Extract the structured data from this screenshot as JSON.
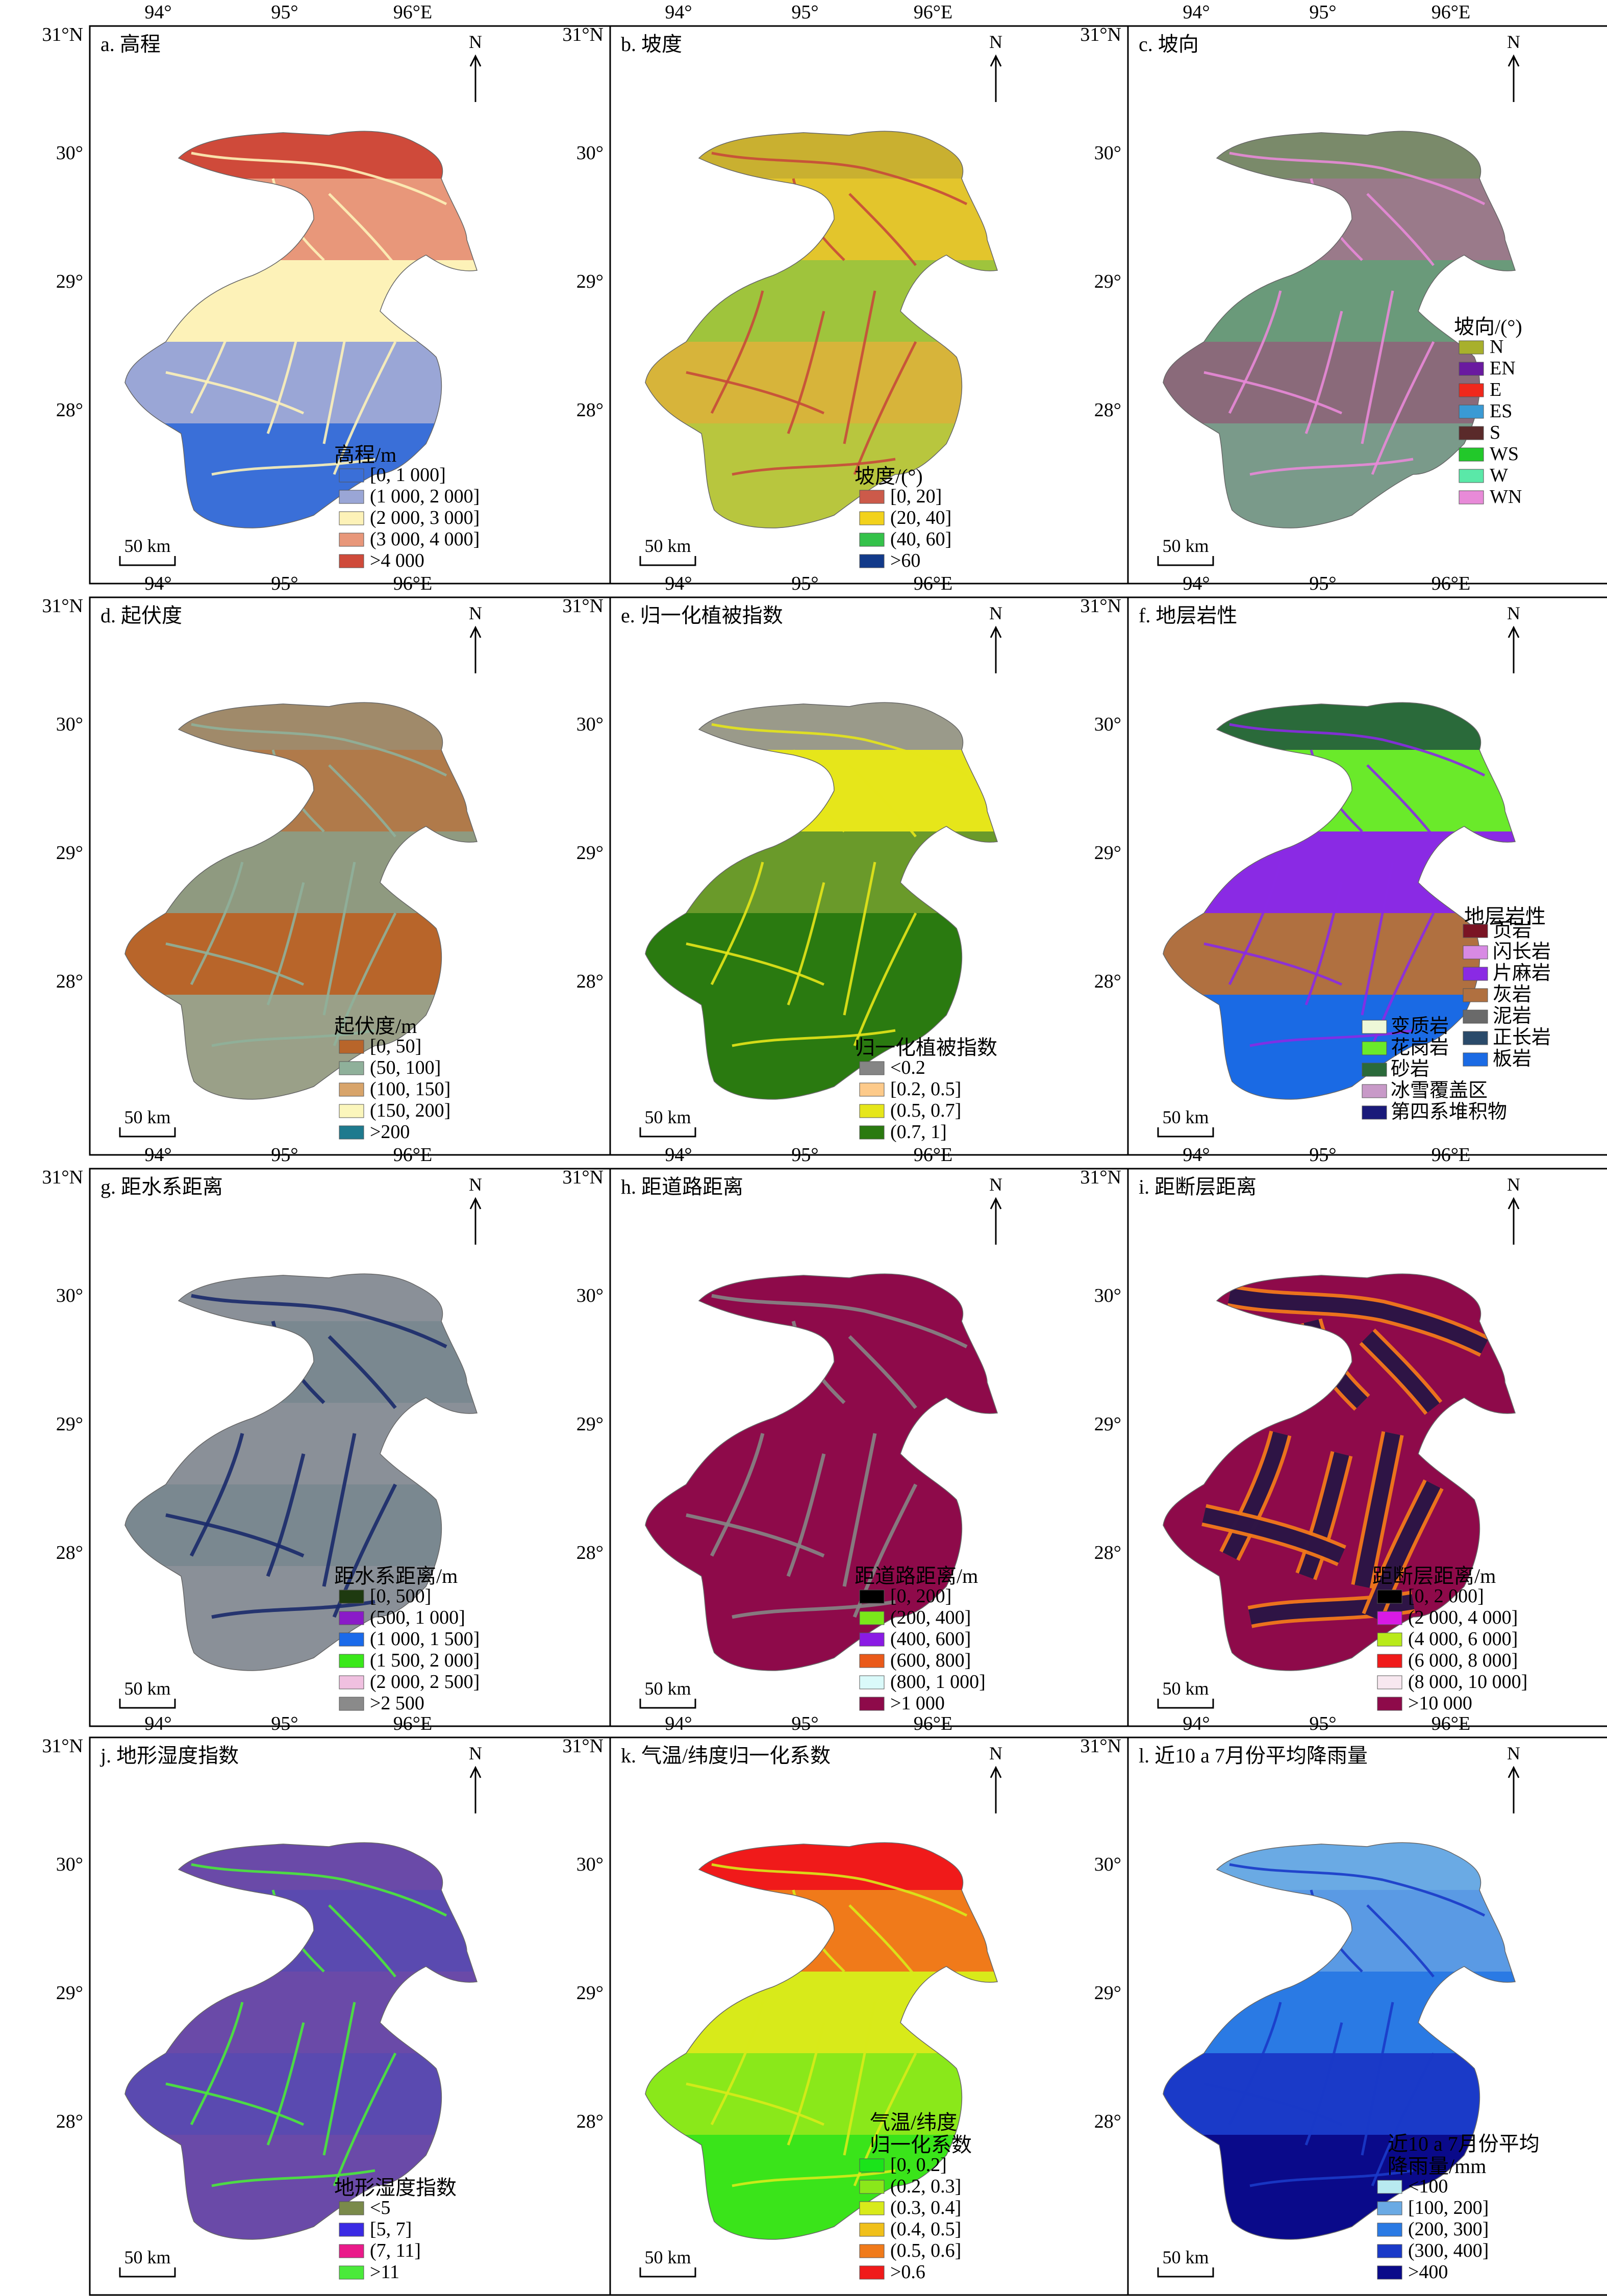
{
  "figure": {
    "panels": [
      {
        "id": "a",
        "title": "a. 高程",
        "lon_labels": [
          "94°",
          "95°",
          "96°E"
        ],
        "lat_labels": [
          "31°N",
          "30°",
          "29°",
          "28°"
        ],
        "north": "N",
        "scale": "50 km",
        "legend_title_lines": [
          "高程/m"
        ],
        "legend": [
          {
            "label": "[0, 1 000]",
            "color": "#3a6fd8"
          },
          {
            "label": "(1 000, 2 000]",
            "color": "#9aa6d6"
          },
          {
            "label": "(2 000, 3 000]",
            "color": "#fdf2b8"
          },
          {
            "label": "(3 000, 4 000]",
            "color": "#e8977a"
          },
          {
            "label": ">4 000",
            "color": "#cf4a3a"
          }
        ],
        "map_colors": [
          "#cf4a3a",
          "#e8977a",
          "#fdf2b8",
          "#9aa6d6",
          "#3a6fd8"
        ]
      },
      {
        "id": "b",
        "title": "b. 坡度",
        "lon_labels": [
          "94°",
          "95°",
          "96°E"
        ],
        "lat_labels": [
          "31°N",
          "30°",
          "29°",
          "28°"
        ],
        "north": "N",
        "scale": "50 km",
        "legend_title_lines": [
          "坡度/(°)"
        ],
        "legend": [
          {
            "label": "[0, 20]",
            "color": "#cc5a4a"
          },
          {
            "label": "(20, 40]",
            "color": "#f2d21c"
          },
          {
            "label": "(40, 60]",
            "color": "#34c24a"
          },
          {
            "label": ">60",
            "color": "#123a8a"
          }
        ],
        "map_colors": [
          "#c9b030",
          "#e3c52c",
          "#9fc43c",
          "#d7b43a",
          "#b8c63e"
        ]
      },
      {
        "id": "c",
        "title": "c. 坡向",
        "lon_labels": [
          "94°",
          "95°",
          "96°E"
        ],
        "lat_labels": [
          "31°N",
          "30°",
          "29°",
          "28°"
        ],
        "north": "N",
        "scale": "50 km",
        "legend_title_lines": [
          "坡向/(°)"
        ],
        "legend": [
          {
            "label": "N",
            "color": "#a8b02c"
          },
          {
            "label": "EN",
            "color": "#6a1aa0"
          },
          {
            "label": "E",
            "color": "#f0281c"
          },
          {
            "label": "ES",
            "color": "#3a9ad4"
          },
          {
            "label": "S",
            "color": "#5a2a2a"
          },
          {
            "label": "WS",
            "color": "#22c82a"
          },
          {
            "label": "W",
            "color": "#5ae8a8"
          },
          {
            "label": "WN",
            "color": "#e88ad8"
          }
        ],
        "map_colors": [
          "#7a8a6a",
          "#9a7a8a",
          "#6a9a7a",
          "#8a6a7a",
          "#7a9a8a"
        ]
      },
      {
        "id": "d",
        "title": "d. 起伏度",
        "lon_labels": [
          "94°",
          "95°",
          "96°E"
        ],
        "lat_labels": [
          "31°N",
          "30°",
          "29°",
          "28°"
        ],
        "north": "N",
        "scale": "50 km",
        "legend_title_lines": [
          "起伏度/m"
        ],
        "legend": [
          {
            "label": "[0, 50]",
            "color": "#b8652a"
          },
          {
            "label": "(50, 100]",
            "color": "#8fb09a"
          },
          {
            "label": "(100, 150]",
            "color": "#d8a46a"
          },
          {
            "label": "(150, 200]",
            "color": "#fbf6bc"
          },
          {
            "label": ">200",
            "color": "#1e7a8e"
          }
        ],
        "map_colors": [
          "#a08a6a",
          "#b07a4a",
          "#8f9a80",
          "#b8652a",
          "#9aa088"
        ]
      },
      {
        "id": "e",
        "title": "e. 归一化植被指数",
        "lon_labels": [
          "94°",
          "95°",
          "96°E"
        ],
        "lat_labels": [
          "31°N",
          "30°",
          "29°",
          "28°"
        ],
        "north": "N",
        "scale": "50 km",
        "legend_title_lines": [
          "归一化植被指数"
        ],
        "legend": [
          {
            "label": "<0.2",
            "color": "#858585"
          },
          {
            "label": "[0.2, 0.5]",
            "color": "#fdca8a"
          },
          {
            "label": "(0.5, 0.7]",
            "color": "#e6e61a"
          },
          {
            "label": "(0.7, 1]",
            "color": "#2a7a10"
          }
        ],
        "map_colors": [
          "#9a9a8a",
          "#e6e61a",
          "#6a9a2a",
          "#2a7a10",
          "#2a7a10"
        ]
      },
      {
        "id": "f",
        "title": "f. 地层岩性",
        "lon_labels": [
          "94°",
          "95°",
          "96°E"
        ],
        "lat_labels": [
          "31°N",
          "30°",
          "29°",
          "28°"
        ],
        "north": "N",
        "scale": "50 km",
        "legend_title_lines": [
          "地层岩性"
        ],
        "legend": [
          {
            "label": "页岩",
            "color": "#7a1424"
          },
          {
            "label": "闪长岩",
            "color": "#d88ae4"
          },
          {
            "label": "片麻岩",
            "color": "#8a2ae4"
          },
          {
            "label": "灰岩",
            "color": "#b07040"
          },
          {
            "label": "泥岩",
            "color": "#6a6a6a"
          },
          {
            "label": "正长岩",
            "color": "#2a4a6a"
          },
          {
            "label": "板岩",
            "color": "#1a6ae4"
          },
          {
            "label": "变质岩",
            "color": "#eef8d8"
          },
          {
            "label": "花岗岩",
            "color": "#6aea2a"
          },
          {
            "label": "砂岩",
            "color": "#2a6a3a"
          },
          {
            "label": "冰雪覆盖区",
            "color": "#c89ac8"
          },
          {
            "label": "第四系堆积物",
            "color": "#1a1a7a"
          }
        ],
        "map_colors": [
          "#2a6a3a",
          "#6aea2a",
          "#8a2ae4",
          "#b07040",
          "#1a6ae4"
        ]
      },
      {
        "id": "g",
        "title": "g. 距水系距离",
        "lon_labels": [
          "94°",
          "95°",
          "96°E"
        ],
        "lat_labels": [
          "31°N",
          "30°",
          "29°",
          "28°"
        ],
        "north": "N",
        "scale": "50 km",
        "legend_title_lines": [
          "距水系距离/m"
        ],
        "legend": [
          {
            "label": "[0, 500]",
            "color": "#1e3a10"
          },
          {
            "label": "(500, 1 000]",
            "color": "#8a1ac8"
          },
          {
            "label": "(1 000, 1 500]",
            "color": "#1a6aea"
          },
          {
            "label": "(1 500, 2 000]",
            "color": "#3ae81a"
          },
          {
            "label": "(2 000, 2 500]",
            "color": "#f0c0e0"
          },
          {
            "label": ">2 500",
            "color": "#8a8a8a"
          }
        ],
        "map_colors": [
          "#8a9098",
          "#7a8890",
          "#8a9098",
          "#7a8890",
          "#8a9098"
        ]
      },
      {
        "id": "h",
        "title": "h. 距道路距离",
        "lon_labels": [
          "94°",
          "95°",
          "96°E"
        ],
        "lat_labels": [
          "31°N",
          "30°",
          "29°",
          "28°"
        ],
        "north": "N",
        "scale": "50 km",
        "legend_title_lines": [
          "距道路距离/m"
        ],
        "legend": [
          {
            "label": "[0, 200]",
            "color": "#000000"
          },
          {
            "label": "(200, 400]",
            "color": "#7ae81a"
          },
          {
            "label": "(400, 600]",
            "color": "#8a1ae4"
          },
          {
            "label": "(600, 800]",
            "color": "#ea5a1a"
          },
          {
            "label": "(800, 1 000]",
            "color": "#dafafa"
          },
          {
            "label": ">1 000",
            "color": "#8e0a4a"
          }
        ],
        "map_colors": [
          "#8e0a4a",
          "#8e0a4a",
          "#8e0a4a",
          "#8e0a4a",
          "#8e0a4a"
        ]
      },
      {
        "id": "i",
        "title": "i. 距断层距离",
        "lon_labels": [
          "94°",
          "95°",
          "96°E"
        ],
        "lat_labels": [
          "31°N",
          "30°",
          "29°",
          "28°"
        ],
        "north": "N",
        "scale": "50 km",
        "legend_title_lines": [
          "距断层距离/m"
        ],
        "legend": [
          {
            "label": "[0, 2 000]",
            "color": "#000000"
          },
          {
            "label": "(2 000, 4 000]",
            "color": "#d81ae4"
          },
          {
            "label": "(4 000, 6 000]",
            "color": "#b8ea1a"
          },
          {
            "label": "(6 000, 8 000]",
            "color": "#f01a1a"
          },
          {
            "label": "(8 000, 10 000]",
            "color": "#f8e8f0"
          },
          {
            "label": ">10 000",
            "color": "#8e0a4a"
          }
        ],
        "map_colors": [
          "#8e0a4a",
          "#8e0a4a",
          "#8e0a4a",
          "#8e0a4a",
          "#8e0a4a"
        ]
      },
      {
        "id": "j",
        "title": "j. 地形湿度指数",
        "lon_labels": [
          "94°",
          "95°",
          "96°E"
        ],
        "lat_labels": [
          "31°N",
          "30°",
          "29°",
          "28°"
        ],
        "north": "N",
        "scale": "50 km",
        "legend_title_lines": [
          "地形湿度指数"
        ],
        "legend": [
          {
            "label": "<5",
            "color": "#7a8a4a"
          },
          {
            "label": "[5, 7]",
            "color": "#3a2ae4"
          },
          {
            "label": "(7, 11]",
            "color": "#ea1a8a"
          },
          {
            "label": ">11",
            "color": "#4aea3a"
          }
        ],
        "map_colors": [
          "#6a4aa8",
          "#5a4ab0",
          "#6a4aa8",
          "#5a4ab0",
          "#6a4aa8"
        ]
      },
      {
        "id": "k",
        "title": "k. 气温/纬度归一化系数",
        "lon_labels": [
          "94°",
          "95°",
          "96°E"
        ],
        "lat_labels": [
          "31°N",
          "30°",
          "29°",
          "28°"
        ],
        "north": "N",
        "scale": "50 km",
        "legend_title_lines": [
          "气温/纬度",
          "归一化系数"
        ],
        "legend": [
          {
            "label": "[0, 0.2]",
            "color": "#1ae41a"
          },
          {
            "label": "(0.2, 0.3]",
            "color": "#8ae81a"
          },
          {
            "label": "(0.3, 0.4]",
            "color": "#d8ea1a"
          },
          {
            "label": "(0.4, 0.5]",
            "color": "#f0c01a"
          },
          {
            "label": "(0.5, 0.6]",
            "color": "#f07a1a"
          },
          {
            "label": ">0.6",
            "color": "#f01a1a"
          }
        ],
        "map_colors": [
          "#f01a1a",
          "#f07a1a",
          "#d8ea1a",
          "#8ae81a",
          "#3ae41a"
        ]
      },
      {
        "id": "l",
        "title": "l. 近10 a 7月份平均降雨量",
        "lon_labels": [
          "94°",
          "95°",
          "96°E"
        ],
        "lat_labels": [
          "31°N",
          "30°",
          "29°",
          "28°"
        ],
        "north": "N",
        "scale": "50 km",
        "legend_title_lines": [
          "近10 a 7月份平均",
          "降雨量/mm"
        ],
        "legend": [
          {
            "label": "<100",
            "color": "#b8eaf0"
          },
          {
            "label": "[100, 200]",
            "color": "#6aaae4"
          },
          {
            "label": "(200, 300]",
            "color": "#2a7ae4"
          },
          {
            "label": "(300, 400]",
            "color": "#1a3ac8"
          },
          {
            "label": ">400",
            "color": "#0a0a8a"
          }
        ],
        "map_colors": [
          "#6aaae4",
          "#5a9ae4",
          "#2a7ae4",
          "#1a3ac8",
          "#0a0a8a"
        ]
      }
    ]
  }
}
